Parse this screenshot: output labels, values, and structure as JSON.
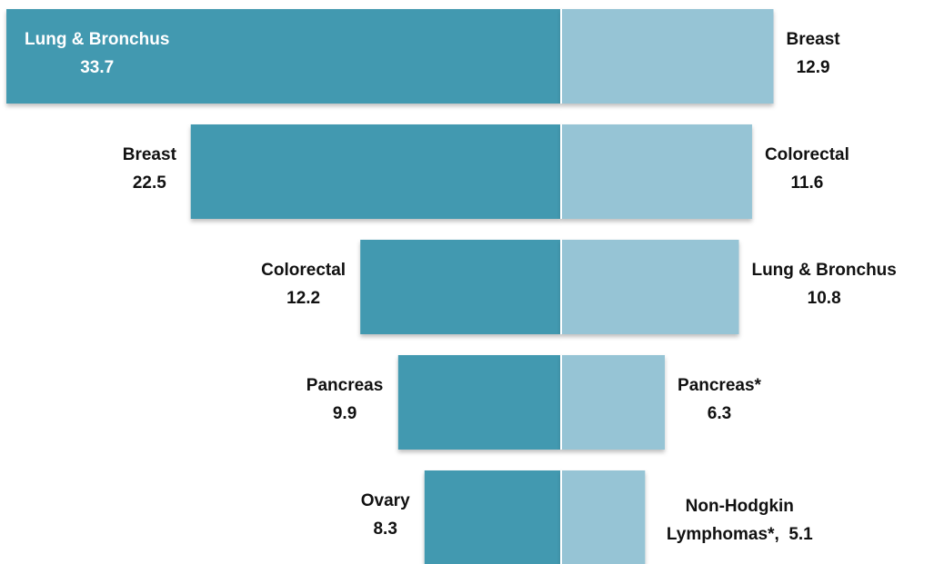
{
  "chart_data": {
    "type": "butterfly",
    "series": [
      {
        "color": "#4399b0",
        "categories": [
          "Lung & Bronchus",
          "Breast",
          "Colorectal",
          "Pancreas",
          "Ovary"
        ],
        "values": [
          33.7,
          22.5,
          12.2,
          9.9,
          8.3
        ]
      },
      {
        "color": "#96c4d5",
        "categories": [
          "Breast",
          "Colorectal",
          "Lung & Bronchus",
          "Pancreas*",
          "Non-Hodgkin Lymphomas*,"
        ],
        "values": [
          12.9,
          11.6,
          10.8,
          6.3,
          5.1
        ]
      }
    ]
  }
}
